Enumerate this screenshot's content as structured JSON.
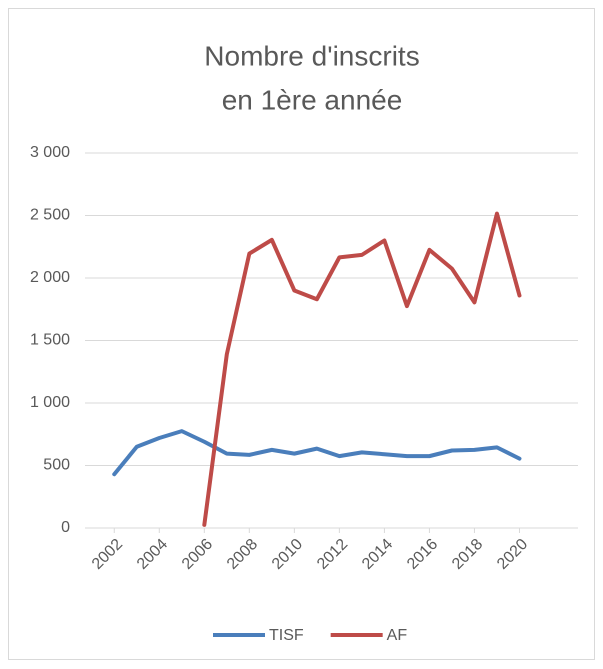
{
  "chart_data": {
    "type": "line",
    "title_lines": [
      "Nombre d'inscrits",
      "en 1ère année"
    ],
    "x": [
      2002,
      2003,
      2004,
      2005,
      2006,
      2007,
      2008,
      2009,
      2010,
      2011,
      2012,
      2013,
      2014,
      2015,
      2016,
      2017,
      2018,
      2019,
      2020
    ],
    "xlim": [
      2000.7,
      2022.6
    ],
    "xticks": [
      2002,
      2004,
      2006,
      2008,
      2010,
      2012,
      2014,
      2016,
      2018,
      2020
    ],
    "ylim": [
      0,
      3000
    ],
    "yticks": [
      {
        "value": 0,
        "label": "0"
      },
      {
        "value": 500,
        "label": "500"
      },
      {
        "value": 1000,
        "label": "1 000"
      },
      {
        "value": 1500,
        "label": "1 500"
      },
      {
        "value": 2000,
        "label": "2 000"
      },
      {
        "value": 2500,
        "label": "2 500"
      },
      {
        "value": 3000,
        "label": "3 000"
      }
    ],
    "grid": true,
    "legend": "bottom",
    "series": [
      {
        "name": "TISF",
        "color": "#4a7ebb",
        "values": [
          430,
          650,
          720,
          775,
          690,
          595,
          585,
          625,
          595,
          635,
          575,
          605,
          590,
          575,
          575,
          620,
          625,
          645,
          555
        ]
      },
      {
        "name": "AF",
        "color": "#be4b48",
        "values": [
          null,
          null,
          null,
          null,
          25,
          1390,
          2195,
          2305,
          1900,
          1830,
          2165,
          2185,
          2300,
          1775,
          2225,
          2075,
          1805,
          2515,
          1860
        ]
      }
    ]
  }
}
